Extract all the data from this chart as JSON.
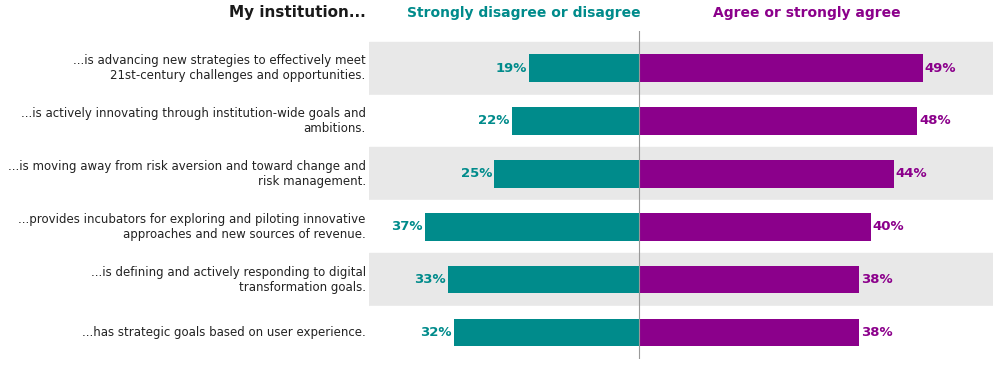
{
  "title": "My institution...",
  "col_header_disagree": "Strongly disagree or disagree",
  "col_header_agree": "Agree or strongly agree",
  "categories": [
    "...is advancing new strategies to effectively meet\n21st-century challenges and opportunities.",
    "...is actively innovating through institution-wide goals and\nambitions.",
    "...is moving away from risk aversion and toward change and\nrisk management.",
    "...provides incubators for exploring and piloting innovative\napproaches and new sources of revenue.",
    "...is defining and actively responding to digital\ntransformation goals.",
    "...has strategic goals based on user experience."
  ],
  "disagree_values": [
    19,
    22,
    25,
    37,
    33,
    32
  ],
  "agree_values": [
    49,
    48,
    44,
    40,
    38,
    38
  ],
  "disagree_color": "#008B8B",
  "agree_color": "#8B008B",
  "disagree_label_color": "#008B8B",
  "agree_label_color": "#8B008B",
  "title_color": "#1a1a1a",
  "header_disagree_color": "#008B8B",
  "header_agree_color": "#8B008B",
  "bg_color_odd": "#e8e8e8",
  "bg_color_even": "#ffffff",
  "bar_height": 0.52,
  "font_size_labels": 8.5,
  "font_size_header": 10,
  "font_size_values": 9.5,
  "font_size_title": 11,
  "scale": 0.9
}
